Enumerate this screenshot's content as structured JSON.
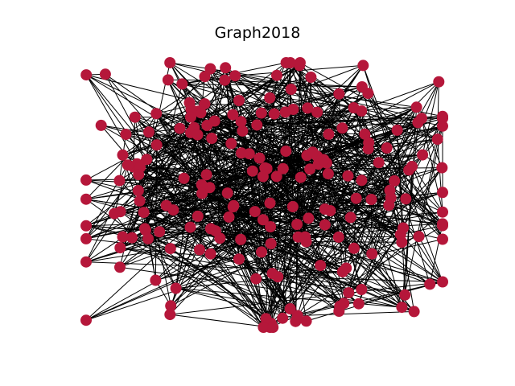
{
  "figure": {
    "title": "Graph2018"
  },
  "style": {
    "node_color": "#b5173a",
    "edge_color": "#000000",
    "background": "#ffffff"
  },
  "graph": {
    "type": "network",
    "node_count": 210,
    "edges_per_node": 4,
    "seed": 2018
  }
}
